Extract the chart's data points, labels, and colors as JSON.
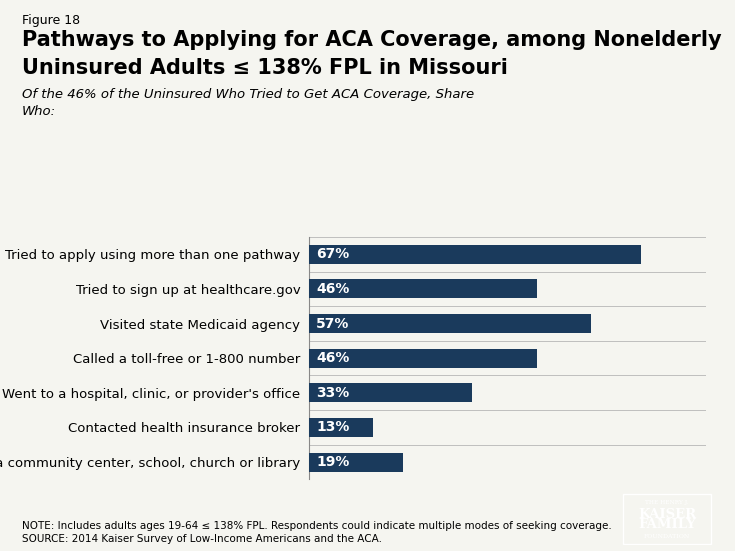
{
  "figure_label": "Figure 18",
  "title_line1": "Pathways to Applying for ACA Coverage, among Nonelderly",
  "title_line2": "Uninsured Adults ≤ 138% FPL in Missouri",
  "subtitle_line1": "Of the 46% of the Uninsured Who Tried to Get ACA Coverage, Share",
  "subtitle_line2": "Who:",
  "categories": [
    "Tried to apply using more than one pathway",
    "Tried to sign up at healthcare.gov",
    "Visited state Medicaid agency",
    "Called a toll-free or 1-800 number",
    "Went to a hospital, clinic, or provider's office",
    "Contacted health insurance broker",
    "Went to a community center, school, church or library"
  ],
  "values": [
    67,
    46,
    57,
    46,
    33,
    13,
    19
  ],
  "bar_color": "#1a3a5c",
  "text_color": "#ffffff",
  "background_color": "#f5f5f0",
  "note_line1": "NOTE: Includes adults ages 19-64 ≤ 138% FPL. Respondents could indicate multiple modes of seeking coverage.",
  "note_line2": "SOURCE: 2014 Kaiser Survey of Low-Income Americans and the ACA.",
  "xlim": [
    0,
    80
  ],
  "bar_height": 0.55,
  "logo_color": "#1e3a5f"
}
